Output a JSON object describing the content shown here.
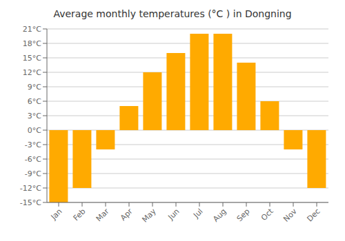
{
  "chart_data": {
    "type": "bar",
    "title": "Average monthly temperatures (°C ) in Dongning",
    "categories": [
      "Jan",
      "Feb",
      "Mar",
      "Apr",
      "May",
      "Jun",
      "Jul",
      "Aug",
      "Sep",
      "Oct",
      "Nov",
      "Dec"
    ],
    "values": [
      -15,
      -12,
      -4,
      5,
      12,
      16,
      20,
      20,
      14,
      6,
      -4,
      -12
    ],
    "color": "#FFAA00",
    "ylim": [
      -15,
      21
    ],
    "yticks": [
      {
        "value": -15,
        "label": "-15°C"
      },
      {
        "value": -12,
        "label": "-12°C"
      },
      {
        "value": -9,
        "label": "-9°C"
      },
      {
        "value": -6,
        "label": "-6°C"
      },
      {
        "value": -3,
        "label": "-3°C"
      },
      {
        "value": 0,
        "label": "0°C"
      },
      {
        "value": 3,
        "label": "3°C"
      },
      {
        "value": 6,
        "label": "6°C"
      },
      {
        "value": 9,
        "label": "9°C"
      },
      {
        "value": 12,
        "label": "12°C"
      },
      {
        "value": 15,
        "label": "15°C"
      },
      {
        "value": 18,
        "label": "18°C"
      },
      {
        "value": 21,
        "label": "21°C"
      }
    ],
    "grid": true
  }
}
